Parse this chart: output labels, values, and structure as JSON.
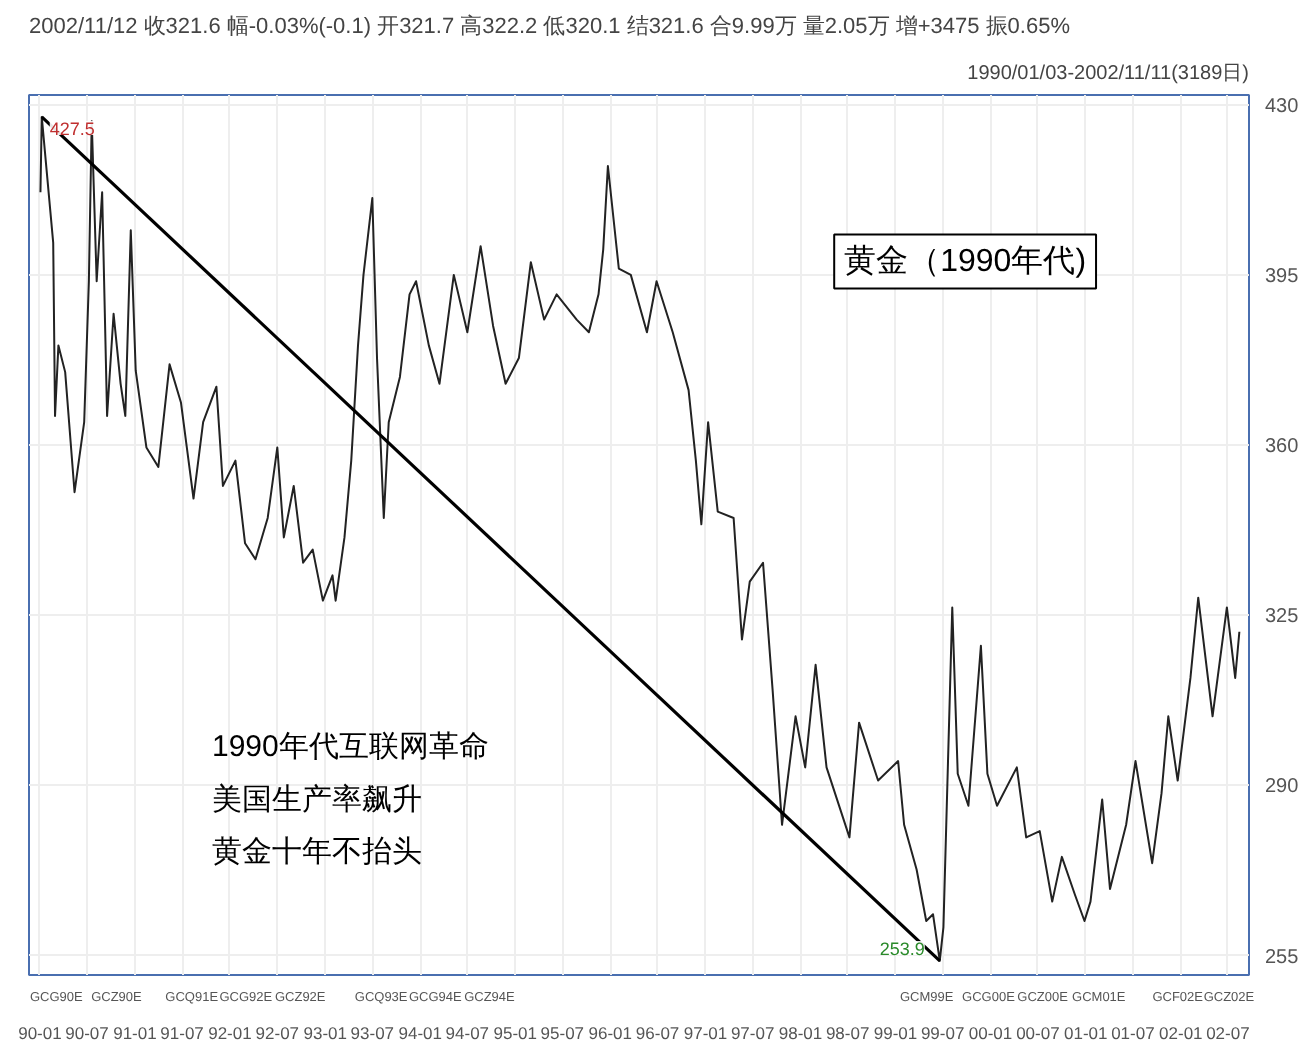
{
  "chart_data": {
    "type": "line",
    "title": "2002/11/12 收321.6 幅-0.03%(-0.1) 开321.7 高322.2 低320.1 结321.6 合9.99万 量2.05万 增+3475 振0.65%",
    "subtitle": "1990/01/03-2002/11/11(3189日)",
    "series": [
      {
        "color": "#222222",
        "x": [
          "1990-01-03",
          "1990-01-08",
          "1990-02-21",
          "1990-02-28",
          "1990-03-13",
          "1990-04-08",
          "1990-05-14",
          "1990-06-20",
          "1990-07-08",
          "1990-07-19",
          "1990-08-07",
          "1990-08-28",
          "1990-09-16",
          "1990-10-11",
          "1990-11-07",
          "1990-11-25",
          "1990-12-16",
          "1991-01-04",
          "1991-02-14",
          "1991-04-01",
          "1991-05-14",
          "1991-06-27",
          "1991-08-14",
          "1991-09-20",
          "1991-11-10",
          "1991-12-05",
          "1992-01-22",
          "1992-02-28",
          "1992-04-08",
          "1992-05-25",
          "1992-07-01",
          "1992-07-26",
          "1992-09-02",
          "1992-10-08",
          "1992-11-14",
          "1992-12-23",
          "1993-01-29",
          "1993-02-10",
          "1993-03-16",
          "1993-04-11",
          "1993-05-07",
          "1993-05-28",
          "1993-07-01",
          "1993-07-19",
          "1993-08-14",
          "1993-09-02",
          "1993-10-15",
          "1993-11-21",
          "1993-12-16",
          "1994-02-03",
          "1994-03-16",
          "1994-05-10",
          "1994-07-01",
          "1994-08-21",
          "1994-10-08",
          "1994-11-25",
          "1995-01-15",
          "1995-03-02",
          "1995-04-22",
          "1995-06-09",
          "1995-08-25",
          "1995-10-11",
          "1995-11-17",
          "1995-12-05",
          "1995-12-23",
          "1996-02-03",
          "1996-03-20",
          "1996-05-21",
          "1996-06-27",
          "1996-08-28",
          "1996-10-28",
          "1996-11-25",
          "1996-12-16",
          "1997-01-11",
          "1997-02-17",
          "1997-04-19",
          "1997-05-21",
          "1997-06-20",
          "1997-08-10",
          "1997-09-16",
          "1997-10-22",
          "1997-12-13",
          "1998-01-19",
          "1998-02-28",
          "1998-04-11",
          "1998-07-08",
          "1998-08-14",
          "1998-10-26",
          "1999-01-11",
          "1999-02-03",
          "1999-03-23",
          "1999-04-29",
          "1999-05-25",
          "1999-06-20",
          "1999-07-04",
          "1999-08-07",
          "1999-08-28",
          "1999-10-08",
          "1999-11-25",
          "1999-12-20",
          "2000-01-26",
          "2000-04-11",
          "2000-05-17",
          "2000-07-08",
          "2000-08-25",
          "2000-10-01",
          "2000-11-21",
          "2000-12-27",
          "2001-01-19",
          "2001-03-05",
          "2001-04-04",
          "2001-06-05",
          "2001-07-11",
          "2001-09-13",
          "2001-10-19",
          "2001-11-14",
          "2001-12-20",
          "2002-02-07",
          "2002-03-09",
          "2002-05-03",
          "2002-06-27",
          "2002-07-29",
          "2002-08-14"
        ],
        "values": [
          412,
          427.5,
          401.6,
          366,
          380.5,
          375,
          350.3,
          364.7,
          393.7,
          426.6,
          393.7,
          412,
          366,
          387,
          372.6,
          366,
          404.2,
          375.3,
          359.5,
          355.5,
          376.6,
          368.7,
          349,
          364.7,
          372,
          351.6,
          356.8,
          339.8,
          336.5,
          345,
          359.5,
          341,
          351.6,
          335.8,
          338.5,
          328,
          333.2,
          328,
          341,
          356.8,
          380.5,
          395,
          410.8,
          377.9,
          345,
          364.7,
          374,
          391,
          393.7,
          380.5,
          372.6,
          395,
          383.2,
          400.9,
          384.5,
          372.6,
          377.9,
          397.6,
          385.8,
          391,
          385.8,
          383.2,
          391,
          400.2,
          417.4,
          396.3,
          395,
          383.2,
          393.7,
          383.2,
          371.3,
          356.8,
          343.7,
          364.7,
          346.3,
          345,
          320,
          331.9,
          335.8,
          309.5,
          281.9,
          304.2,
          293.7,
          314.8,
          293.7,
          279.3,
          302.9,
          291,
          295,
          281.9,
          272.7,
          262.1,
          263.5,
          253.9,
          260.8,
          326.6,
          292.4,
          285.8,
          318.7,
          292.4,
          285.8,
          293.7,
          279.3,
          280.6,
          266.1,
          275.3,
          267.4,
          262.1,
          266.1,
          287.1,
          268.7,
          281.9,
          295,
          274,
          288.4,
          304.2,
          291,
          312.1,
          328.6,
          304.2,
          326.6,
          312.1,
          321.6
        ]
      },
      {
        "color": "#000000",
        "x": [
          "1990-01-08",
          "1999-06-20"
        ],
        "values": [
          427.5,
          253.9
        ]
      }
    ],
    "xlim": [
      "1989-11-20",
      "2002-09-20"
    ],
    "ylim": [
      251,
      432
    ],
    "xticks": [
      {
        "value": "1990-01-01",
        "label": "90-01"
      },
      {
        "value": "1990-07-01",
        "label": "90-07"
      },
      {
        "value": "1991-01-01",
        "label": "91-01"
      },
      {
        "value": "1991-07-01",
        "label": "91-07"
      },
      {
        "value": "1992-01-01",
        "label": "92-01"
      },
      {
        "value": "1992-07-01",
        "label": "92-07"
      },
      {
        "value": "1993-01-01",
        "label": "93-01"
      },
      {
        "value": "1993-07-01",
        "label": "93-07"
      },
      {
        "value": "1994-01-01",
        "label": "94-01"
      },
      {
        "value": "1994-07-01",
        "label": "94-07"
      },
      {
        "value": "1995-01-01",
        "label": "95-01"
      },
      {
        "value": "1995-07-01",
        "label": "95-07"
      },
      {
        "value": "1996-01-01",
        "label": "96-01"
      },
      {
        "value": "1996-07-01",
        "label": "96-07"
      },
      {
        "value": "1997-01-01",
        "label": "97-01"
      },
      {
        "value": "1997-07-01",
        "label": "97-07"
      },
      {
        "value": "1998-01-01",
        "label": "98-01"
      },
      {
        "value": "1998-07-01",
        "label": "98-07"
      },
      {
        "value": "1999-01-01",
        "label": "99-01"
      },
      {
        "value": "1999-07-01",
        "label": "99-07"
      },
      {
        "value": "2000-01-01",
        "label": "00-01"
      },
      {
        "value": "2000-07-01",
        "label": "00-07"
      },
      {
        "value": "2001-01-01",
        "label": "01-01"
      },
      {
        "value": "2001-07-01",
        "label": "01-07"
      },
      {
        "value": "2002-01-01",
        "label": "02-01"
      },
      {
        "value": "2002-07-01",
        "label": "02-07"
      }
    ],
    "x2lim": [
      "1989-11-20",
      "2002-09-20"
    ],
    "x2ticks": [
      {
        "value": "1990-03-05",
        "label": "GCG90E"
      },
      {
        "value": "1990-10-22",
        "label": "GCZ90E"
      },
      {
        "value": "1991-08-07",
        "label": "GCQ91E"
      },
      {
        "value": "1992-03-02",
        "label": "GCG92E"
      },
      {
        "value": "1992-09-27",
        "label": "GCZ92E"
      },
      {
        "value": "1993-08-04",
        "label": "GCQ93E"
      },
      {
        "value": "1994-02-28",
        "label": "GCG94E"
      },
      {
        "value": "1994-09-24",
        "label": "GCZ94E"
      },
      {
        "value": "1999-05-01",
        "label": "GCM99E"
      },
      {
        "value": "1999-12-24",
        "label": "GCG00E"
      },
      {
        "value": "2000-07-19",
        "label": "GCZ00E"
      },
      {
        "value": "2001-02-20",
        "label": "GCM01E"
      },
      {
        "value": "2001-12-20",
        "label": "GCF02E"
      },
      {
        "value": "2002-07-05",
        "label": "GCZ02E"
      }
    ],
    "yticks": [
      255,
      290,
      325,
      360,
      395,
      430
    ],
    "grid": true,
    "annotations": [
      {
        "text": "427.5",
        "x": "1990-01-08",
        "y": 427.5
      },
      {
        "text": "253.9",
        "x": "1999-06-20",
        "y": 253.9
      },
      "黄金（1990年代)",
      "1990年代互联网革命",
      "美国生产率飙升",
      "黄金十年不抬头"
    ]
  }
}
